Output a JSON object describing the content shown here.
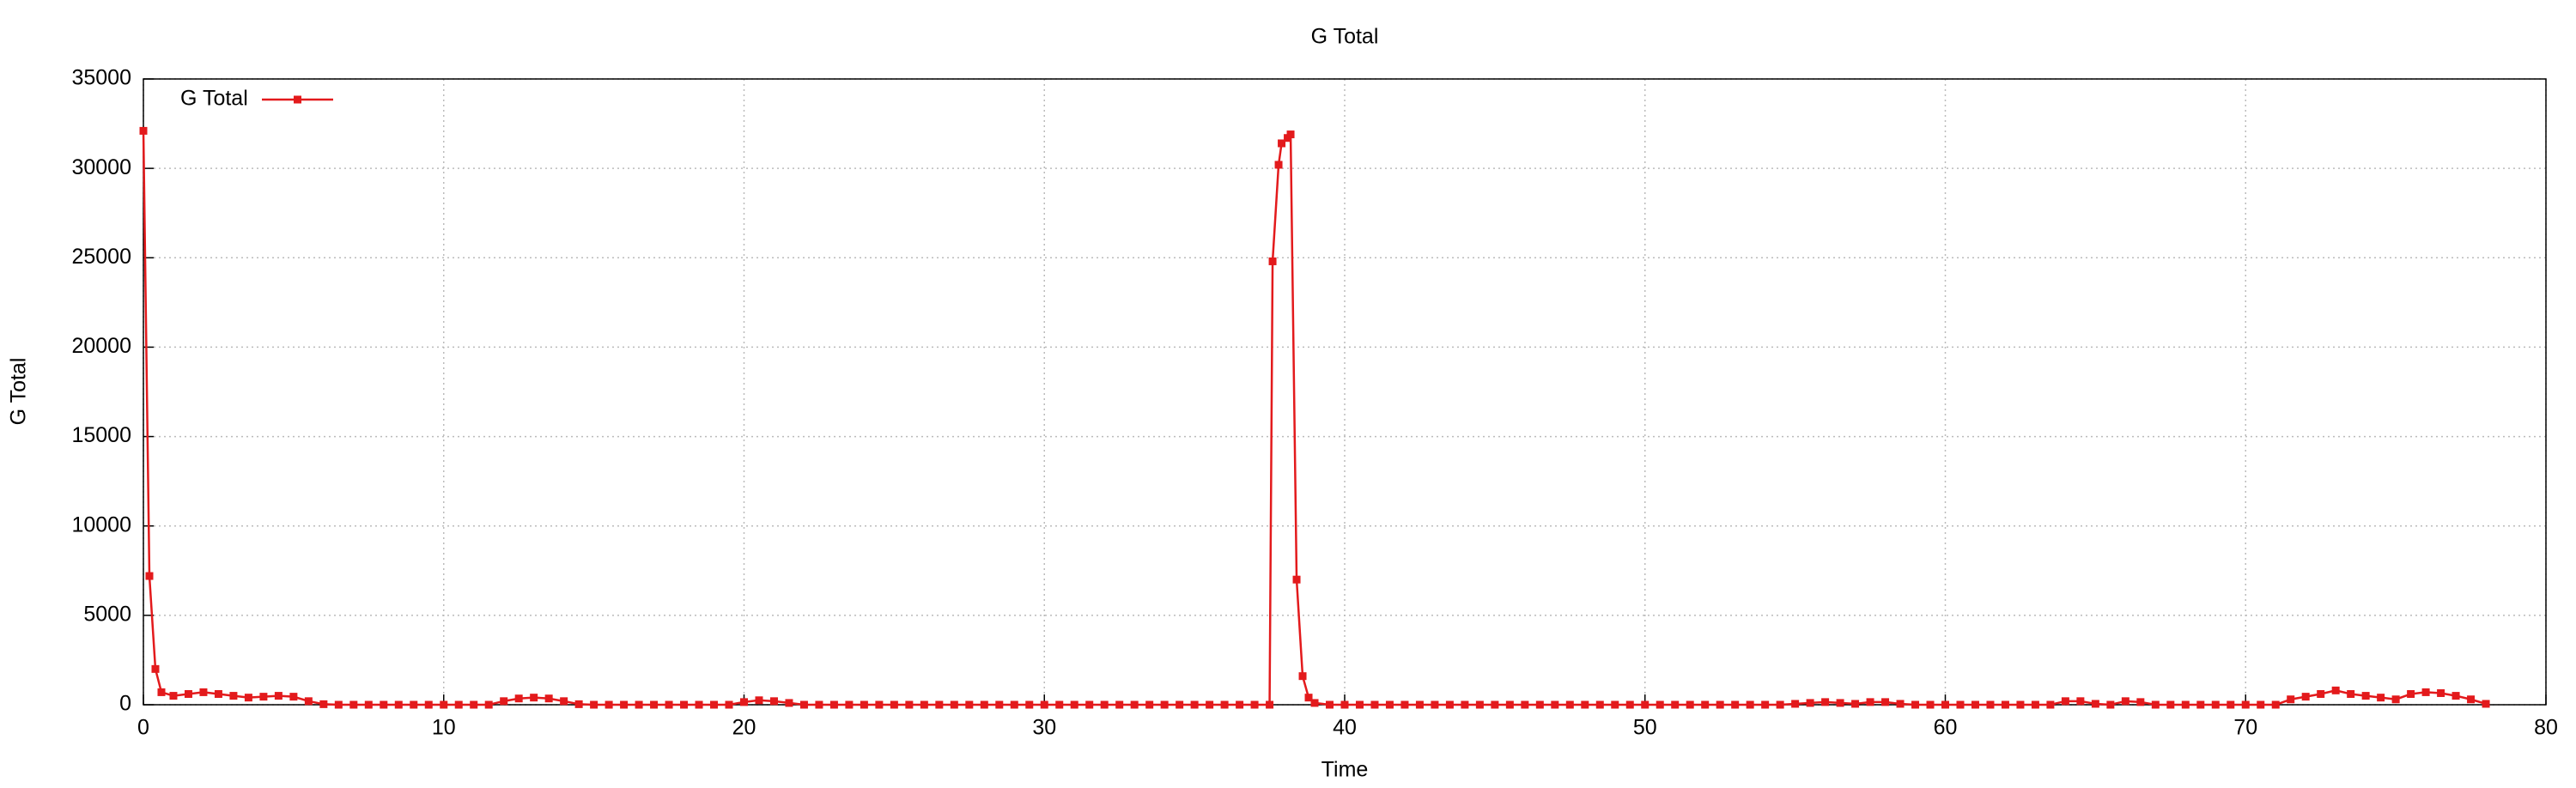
{
  "chart_data": {
    "type": "line",
    "title": "G Total",
    "x_label": "Time",
    "y_label": "G Total",
    "x": [
      0,
      0.2,
      0.4,
      0.6,
      1,
      1.5,
      2,
      2.5,
      3,
      3.5,
      4,
      4.5,
      5,
      5.5,
      6,
      6.5,
      7,
      7.5,
      8,
      8.5,
      9,
      9.5,
      10,
      10.5,
      11,
      11.5,
      12,
      12.5,
      13,
      13.5,
      14,
      14.5,
      15,
      15.5,
      16,
      16.5,
      17,
      17.5,
      18,
      18.5,
      19,
      19.5,
      20,
      20.5,
      21,
      21.5,
      22,
      22.5,
      23,
      23.5,
      24,
      24.5,
      25,
      25.5,
      26,
      26.5,
      27,
      27.5,
      28,
      28.5,
      29,
      29.5,
      30,
      30.5,
      31,
      31.5,
      32,
      32.5,
      33,
      33.5,
      34,
      34.5,
      35,
      35.5,
      36,
      36.5,
      37,
      37.5,
      37.6,
      37.8,
      37.9,
      38.1,
      38.2,
      38.4,
      38.6,
      38.8,
      39,
      39.5,
      40,
      40.5,
      41,
      41.5,
      42,
      42.5,
      43,
      43.5,
      44,
      44.5,
      45,
      45.5,
      46,
      46.5,
      47,
      47.5,
      48,
      48.5,
      49,
      49.5,
      50,
      50.5,
      51,
      51.5,
      52,
      52.5,
      53,
      53.5,
      54,
      54.5,
      55,
      55.5,
      56,
      56.5,
      57,
      57.5,
      58,
      58.5,
      59,
      59.5,
      60,
      60.5,
      61,
      61.5,
      62,
      62.5,
      63,
      63.5,
      64,
      64.5,
      65,
      65.5,
      66,
      66.5,
      67,
      67.5,
      68,
      68.5,
      69,
      69.5,
      70,
      70.5,
      71,
      71.5,
      72,
      72.5,
      73,
      73.5,
      74,
      74.5,
      75,
      75.5,
      76,
      76.5,
      77,
      77.5,
      78
    ],
    "series": [
      {
        "name": "G Total",
        "color": "#e31a1c",
        "values": [
          32100,
          7200,
          2000,
          700,
          500,
          600,
          700,
          600,
          500,
          400,
          450,
          500,
          450,
          200,
          30,
          0,
          0,
          0,
          0,
          0,
          0,
          0,
          0,
          0,
          0,
          0,
          200,
          350,
          400,
          350,
          200,
          30,
          0,
          0,
          0,
          0,
          0,
          0,
          0,
          0,
          0,
          0,
          150,
          250,
          200,
          100,
          0,
          0,
          0,
          0,
          0,
          0,
          0,
          0,
          0,
          0,
          0,
          0,
          0,
          0,
          0,
          0,
          0,
          0,
          0,
          0,
          0,
          0,
          0,
          0,
          0,
          0,
          0,
          0,
          0,
          0,
          0,
          0,
          24800,
          30200,
          31400,
          31700,
          31900,
          7000,
          1600,
          400,
          100,
          0,
          0,
          0,
          0,
          0,
          0,
          0,
          0,
          0,
          0,
          0,
          0,
          0,
          0,
          0,
          0,
          0,
          0,
          0,
          0,
          0,
          0,
          0,
          0,
          0,
          0,
          0,
          0,
          0,
          0,
          0,
          50,
          100,
          150,
          100,
          50,
          150,
          150,
          50,
          0,
          0,
          0,
          0,
          0,
          0,
          0,
          0,
          0,
          0,
          200,
          200,
          50,
          0,
          200,
          150,
          0,
          0,
          0,
          0,
          0,
          0,
          0,
          0,
          0,
          300,
          450,
          600,
          800,
          600,
          500,
          400,
          300,
          600,
          700,
          650,
          500,
          300,
          50
        ]
      }
    ],
    "xlim": [
      0,
      80
    ],
    "xticks": [
      0,
      10,
      20,
      30,
      40,
      50,
      60,
      70,
      80
    ],
    "ylim": [
      0,
      35000
    ],
    "yticks": [
      0,
      5000,
      10000,
      15000,
      20000,
      25000,
      30000,
      35000
    ],
    "grid": true,
    "legend": "top-left"
  }
}
